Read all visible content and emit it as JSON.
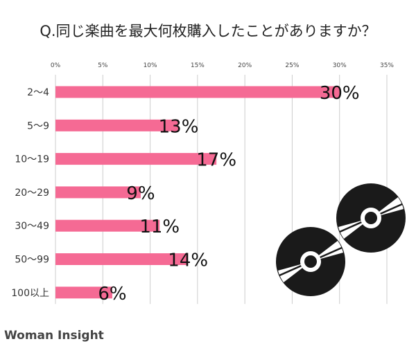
{
  "chart_data": {
    "type": "bar",
    "orientation": "horizontal",
    "title": "Q.同じ楽曲を最大何枚購入したことがありますか？",
    "xlabel": "",
    "ylabel": "",
    "xlim": [
      0,
      35
    ],
    "ticks": [
      0,
      5,
      10,
      15,
      20,
      25,
      30,
      35
    ],
    "tick_labels": [
      "0%",
      "5%",
      "10%",
      "15%",
      "20%",
      "25%",
      "30%",
      "35%"
    ],
    "categories": [
      "2〜4",
      "5〜9",
      "10〜19",
      "20〜29",
      "30〜49",
      "50〜99",
      "100以上"
    ],
    "values": [
      30,
      13,
      17,
      9,
      11,
      14,
      6
    ],
    "data_labels": [
      "30%",
      "13%",
      "17%",
      "9%",
      "11%",
      "14%",
      "6%"
    ],
    "grid": true,
    "bar_color": "#f56a94"
  },
  "branding": {
    "logo_text": "Woman Insight",
    "logo_color": "#444444"
  },
  "decor": {
    "cd_icon_count": 2
  }
}
